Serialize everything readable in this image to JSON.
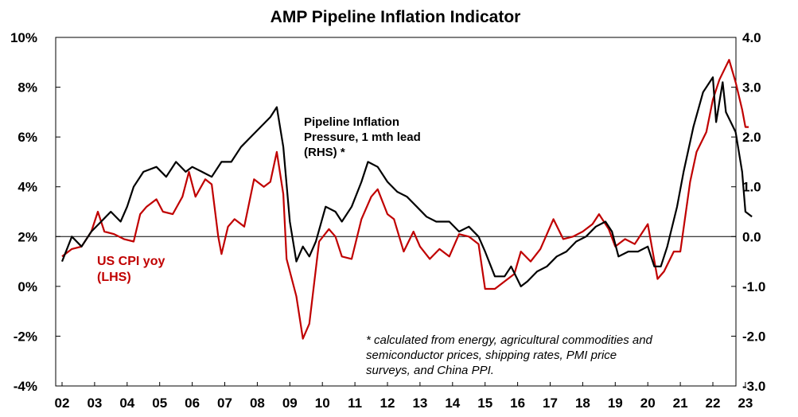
{
  "chart_data": {
    "type": "line",
    "title": "AMP Pipeline Inflation Indicator",
    "x_tick_labels": [
      "02",
      "03",
      "04",
      "05",
      "06",
      "07",
      "08",
      "09",
      "10",
      "11",
      "12",
      "13",
      "14",
      "15",
      "16",
      "17",
      "18",
      "19",
      "20",
      "21",
      "22",
      "23"
    ],
    "x_range": [
      2002.0,
      2023.2
    ],
    "left_axis": {
      "label": "US CPI yoy (LHS)",
      "range": [
        -4,
        10
      ],
      "ticks": [
        "-4%",
        "-2%",
        "0%",
        "2%",
        "4%",
        "6%",
        "8%",
        "10%"
      ]
    },
    "right_axis": {
      "label": "Pipeline Inflation Pressure, 1 mth lead (RHS) *",
      "range": [
        -3.0,
        4.0
      ],
      "ticks": [
        "-3.0",
        "-2.0",
        "-1.0",
        "0.0",
        "1.0",
        "2.0",
        "3.0",
        "4.0"
      ]
    },
    "series": [
      {
        "name": "US CPI yoy (LHS)",
        "axis": "left",
        "color": "#c00000",
        "points": [
          [
            2002.0,
            1.2
          ],
          [
            2002.3,
            1.5
          ],
          [
            2002.6,
            1.6
          ],
          [
            2002.9,
            2.2
          ],
          [
            2003.1,
            3.0
          ],
          [
            2003.3,
            2.2
          ],
          [
            2003.6,
            2.1
          ],
          [
            2003.9,
            1.9
          ],
          [
            2004.2,
            1.8
          ],
          [
            2004.4,
            2.9
          ],
          [
            2004.6,
            3.2
          ],
          [
            2004.9,
            3.5
          ],
          [
            2005.1,
            3.0
          ],
          [
            2005.4,
            2.9
          ],
          [
            2005.7,
            3.6
          ],
          [
            2005.9,
            4.6
          ],
          [
            2006.1,
            3.6
          ],
          [
            2006.4,
            4.3
          ],
          [
            2006.6,
            4.1
          ],
          [
            2006.8,
            2.0
          ],
          [
            2006.9,
            1.3
          ],
          [
            2007.1,
            2.4
          ],
          [
            2007.3,
            2.7
          ],
          [
            2007.6,
            2.4
          ],
          [
            2007.9,
            4.3
          ],
          [
            2008.2,
            4.0
          ],
          [
            2008.4,
            4.2
          ],
          [
            2008.6,
            5.4
          ],
          [
            2008.8,
            3.7
          ],
          [
            2008.9,
            1.1
          ],
          [
            2009.2,
            -0.4
          ],
          [
            2009.4,
            -2.1
          ],
          [
            2009.6,
            -1.5
          ],
          [
            2009.9,
            1.8
          ],
          [
            2010.2,
            2.3
          ],
          [
            2010.4,
            2.0
          ],
          [
            2010.6,
            1.2
          ],
          [
            2010.9,
            1.1
          ],
          [
            2011.2,
            2.7
          ],
          [
            2011.5,
            3.6
          ],
          [
            2011.7,
            3.9
          ],
          [
            2012.0,
            2.9
          ],
          [
            2012.2,
            2.7
          ],
          [
            2012.5,
            1.4
          ],
          [
            2012.8,
            2.2
          ],
          [
            2013.0,
            1.6
          ],
          [
            2013.3,
            1.1
          ],
          [
            2013.6,
            1.5
          ],
          [
            2013.9,
            1.2
          ],
          [
            2014.2,
            2.1
          ],
          [
            2014.5,
            2.0
          ],
          [
            2014.8,
            1.7
          ],
          [
            2015.0,
            -0.1
          ],
          [
            2015.3,
            -0.1
          ],
          [
            2015.6,
            0.2
          ],
          [
            2015.9,
            0.5
          ],
          [
            2016.1,
            1.4
          ],
          [
            2016.4,
            1.0
          ],
          [
            2016.7,
            1.5
          ],
          [
            2016.9,
            2.1
          ],
          [
            2017.1,
            2.7
          ],
          [
            2017.4,
            1.9
          ],
          [
            2017.7,
            2.0
          ],
          [
            2018.0,
            2.2
          ],
          [
            2018.3,
            2.5
          ],
          [
            2018.5,
            2.9
          ],
          [
            2018.8,
            2.3
          ],
          [
            2019.0,
            1.6
          ],
          [
            2019.3,
            1.9
          ],
          [
            2019.6,
            1.7
          ],
          [
            2019.9,
            2.3
          ],
          [
            2020.0,
            2.5
          ],
          [
            2020.3,
            0.3
          ],
          [
            2020.5,
            0.6
          ],
          [
            2020.8,
            1.4
          ],
          [
            2021.0,
            1.4
          ],
          [
            2021.3,
            4.2
          ],
          [
            2021.5,
            5.4
          ],
          [
            2021.8,
            6.2
          ],
          [
            2022.0,
            7.5
          ],
          [
            2022.2,
            8.3
          ],
          [
            2022.5,
            9.1
          ],
          [
            2022.7,
            8.2
          ],
          [
            2022.9,
            7.1
          ],
          [
            2023.0,
            6.4
          ],
          [
            2023.1,
            6.4
          ]
        ]
      },
      {
        "name": "Pipeline Inflation Pressure, 1 mth lead (RHS) *",
        "axis": "right",
        "color": "#000000",
        "points": [
          [
            2002.0,
            -0.5
          ],
          [
            2002.3,
            0.0
          ],
          [
            2002.6,
            -0.2
          ],
          [
            2002.9,
            0.1
          ],
          [
            2003.2,
            0.3
          ],
          [
            2003.5,
            0.5
          ],
          [
            2003.8,
            0.3
          ],
          [
            2004.0,
            0.6
          ],
          [
            2004.2,
            1.0
          ],
          [
            2004.5,
            1.3
          ],
          [
            2004.9,
            1.4
          ],
          [
            2005.2,
            1.2
          ],
          [
            2005.5,
            1.5
          ],
          [
            2005.8,
            1.3
          ],
          [
            2006.0,
            1.4
          ],
          [
            2006.3,
            1.3
          ],
          [
            2006.6,
            1.2
          ],
          [
            2006.9,
            1.5
          ],
          [
            2007.2,
            1.5
          ],
          [
            2007.5,
            1.8
          ],
          [
            2007.8,
            2.0
          ],
          [
            2008.1,
            2.2
          ],
          [
            2008.4,
            2.4
          ],
          [
            2008.6,
            2.6
          ],
          [
            2008.8,
            1.8
          ],
          [
            2009.0,
            0.3
          ],
          [
            2009.2,
            -0.5
          ],
          [
            2009.4,
            -0.2
          ],
          [
            2009.6,
            -0.4
          ],
          [
            2009.8,
            -0.1
          ],
          [
            2010.1,
            0.6
          ],
          [
            2010.4,
            0.5
          ],
          [
            2010.6,
            0.3
          ],
          [
            2010.9,
            0.6
          ],
          [
            2011.2,
            1.1
          ],
          [
            2011.4,
            1.5
          ],
          [
            2011.7,
            1.4
          ],
          [
            2012.0,
            1.1
          ],
          [
            2012.3,
            0.9
          ],
          [
            2012.6,
            0.8
          ],
          [
            2012.9,
            0.6
          ],
          [
            2013.2,
            0.4
          ],
          [
            2013.5,
            0.3
          ],
          [
            2013.9,
            0.3
          ],
          [
            2014.2,
            0.1
          ],
          [
            2014.5,
            0.2
          ],
          [
            2014.8,
            0.0
          ],
          [
            2015.0,
            -0.3
          ],
          [
            2015.3,
            -0.8
          ],
          [
            2015.6,
            -0.8
          ],
          [
            2015.8,
            -0.6
          ],
          [
            2016.1,
            -1.0
          ],
          [
            2016.3,
            -0.9
          ],
          [
            2016.6,
            -0.7
          ],
          [
            2016.9,
            -0.6
          ],
          [
            2017.2,
            -0.4
          ],
          [
            2017.5,
            -0.3
          ],
          [
            2017.8,
            -0.1
          ],
          [
            2018.1,
            0.0
          ],
          [
            2018.4,
            0.2
          ],
          [
            2018.7,
            0.3
          ],
          [
            2018.9,
            0.1
          ],
          [
            2019.1,
            -0.4
          ],
          [
            2019.4,
            -0.3
          ],
          [
            2019.7,
            -0.3
          ],
          [
            2020.0,
            -0.2
          ],
          [
            2020.2,
            -0.6
          ],
          [
            2020.4,
            -0.6
          ],
          [
            2020.6,
            -0.2
          ],
          [
            2020.9,
            0.6
          ],
          [
            2021.1,
            1.3
          ],
          [
            2021.4,
            2.2
          ],
          [
            2021.7,
            2.9
          ],
          [
            2022.0,
            3.2
          ],
          [
            2022.1,
            2.3
          ],
          [
            2022.3,
            3.1
          ],
          [
            2022.4,
            2.5
          ],
          [
            2022.7,
            2.1
          ],
          [
            2022.9,
            1.3
          ],
          [
            2023.0,
            0.5
          ],
          [
            2023.2,
            0.4
          ]
        ]
      }
    ],
    "annotations": {
      "rhs_label_lines": [
        "Pipeline Inflation",
        "Pressure, 1 mth lead",
        "(RHS) *"
      ],
      "lhs_label_lines": [
        "US CPI yoy",
        "(LHS)"
      ],
      "footnote_lines": [
        "* calculated from energy, agricultural commodities and",
        "semiconductor prices, shipping rates, PMI price",
        "surveys, and China PPI."
      ]
    }
  }
}
